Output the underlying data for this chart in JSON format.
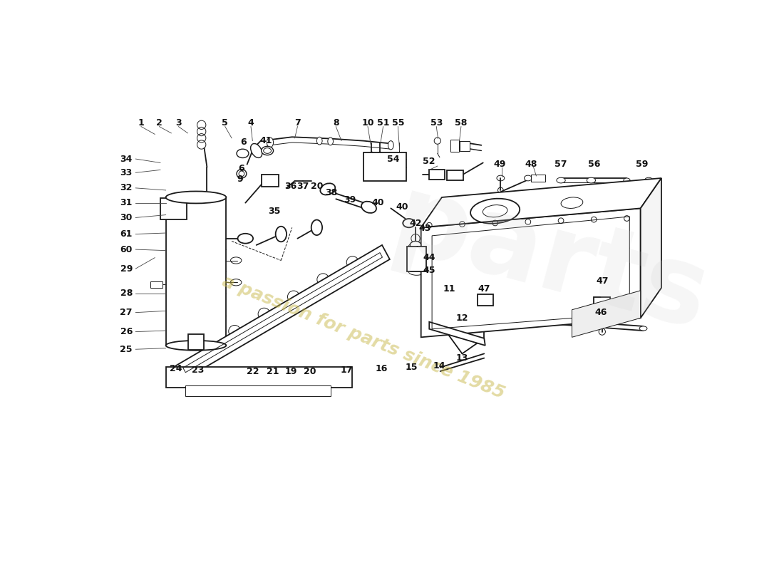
{
  "bg": "#ffffff",
  "lc": "#1a1a1a",
  "wm_text": "a passion for parts since 1985",
  "wm_color": "#c8b84a",
  "wm_alpha": 0.5,
  "lw_main": 1.3,
  "lw_thin": 0.7,
  "lw_med": 1.0,
  "label_fs": 9,
  "label_color": "#111111"
}
